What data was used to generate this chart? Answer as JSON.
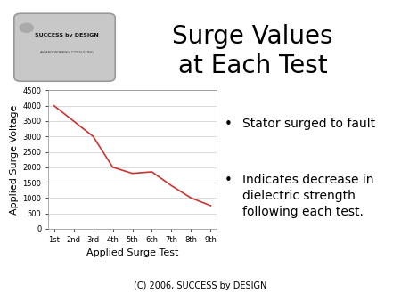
{
  "title": "Surge Values\nat Each Test",
  "xlabel": "Applied Surge Test",
  "ylabel": "Applied Surge Voltage",
  "x_labels": [
    "1st",
    "2nd",
    "3rd",
    "4th",
    "5th",
    "6th",
    "7th",
    "8th",
    "9th"
  ],
  "y_values": [
    4000,
    3500,
    3000,
    2000,
    1800,
    1850,
    1400,
    1000,
    750
  ],
  "ylim": [
    0,
    4500
  ],
  "yticks": [
    0,
    500,
    1000,
    1500,
    2000,
    2500,
    3000,
    3500,
    4000,
    4500
  ],
  "line_color": "#cc3333",
  "grid_color": "#cccccc",
  "background_color": "#ffffff",
  "bullet_points": [
    "Stator surged to fault",
    "Indicates decrease in\ndielectric strength\nfollowing each test."
  ],
  "footer": "(C) 2006, SUCCESS by DESIGN",
  "title_fontsize": 20,
  "axis_label_fontsize": 8,
  "tick_fontsize": 6,
  "bullet_fontsize": 10,
  "footer_fontsize": 7
}
